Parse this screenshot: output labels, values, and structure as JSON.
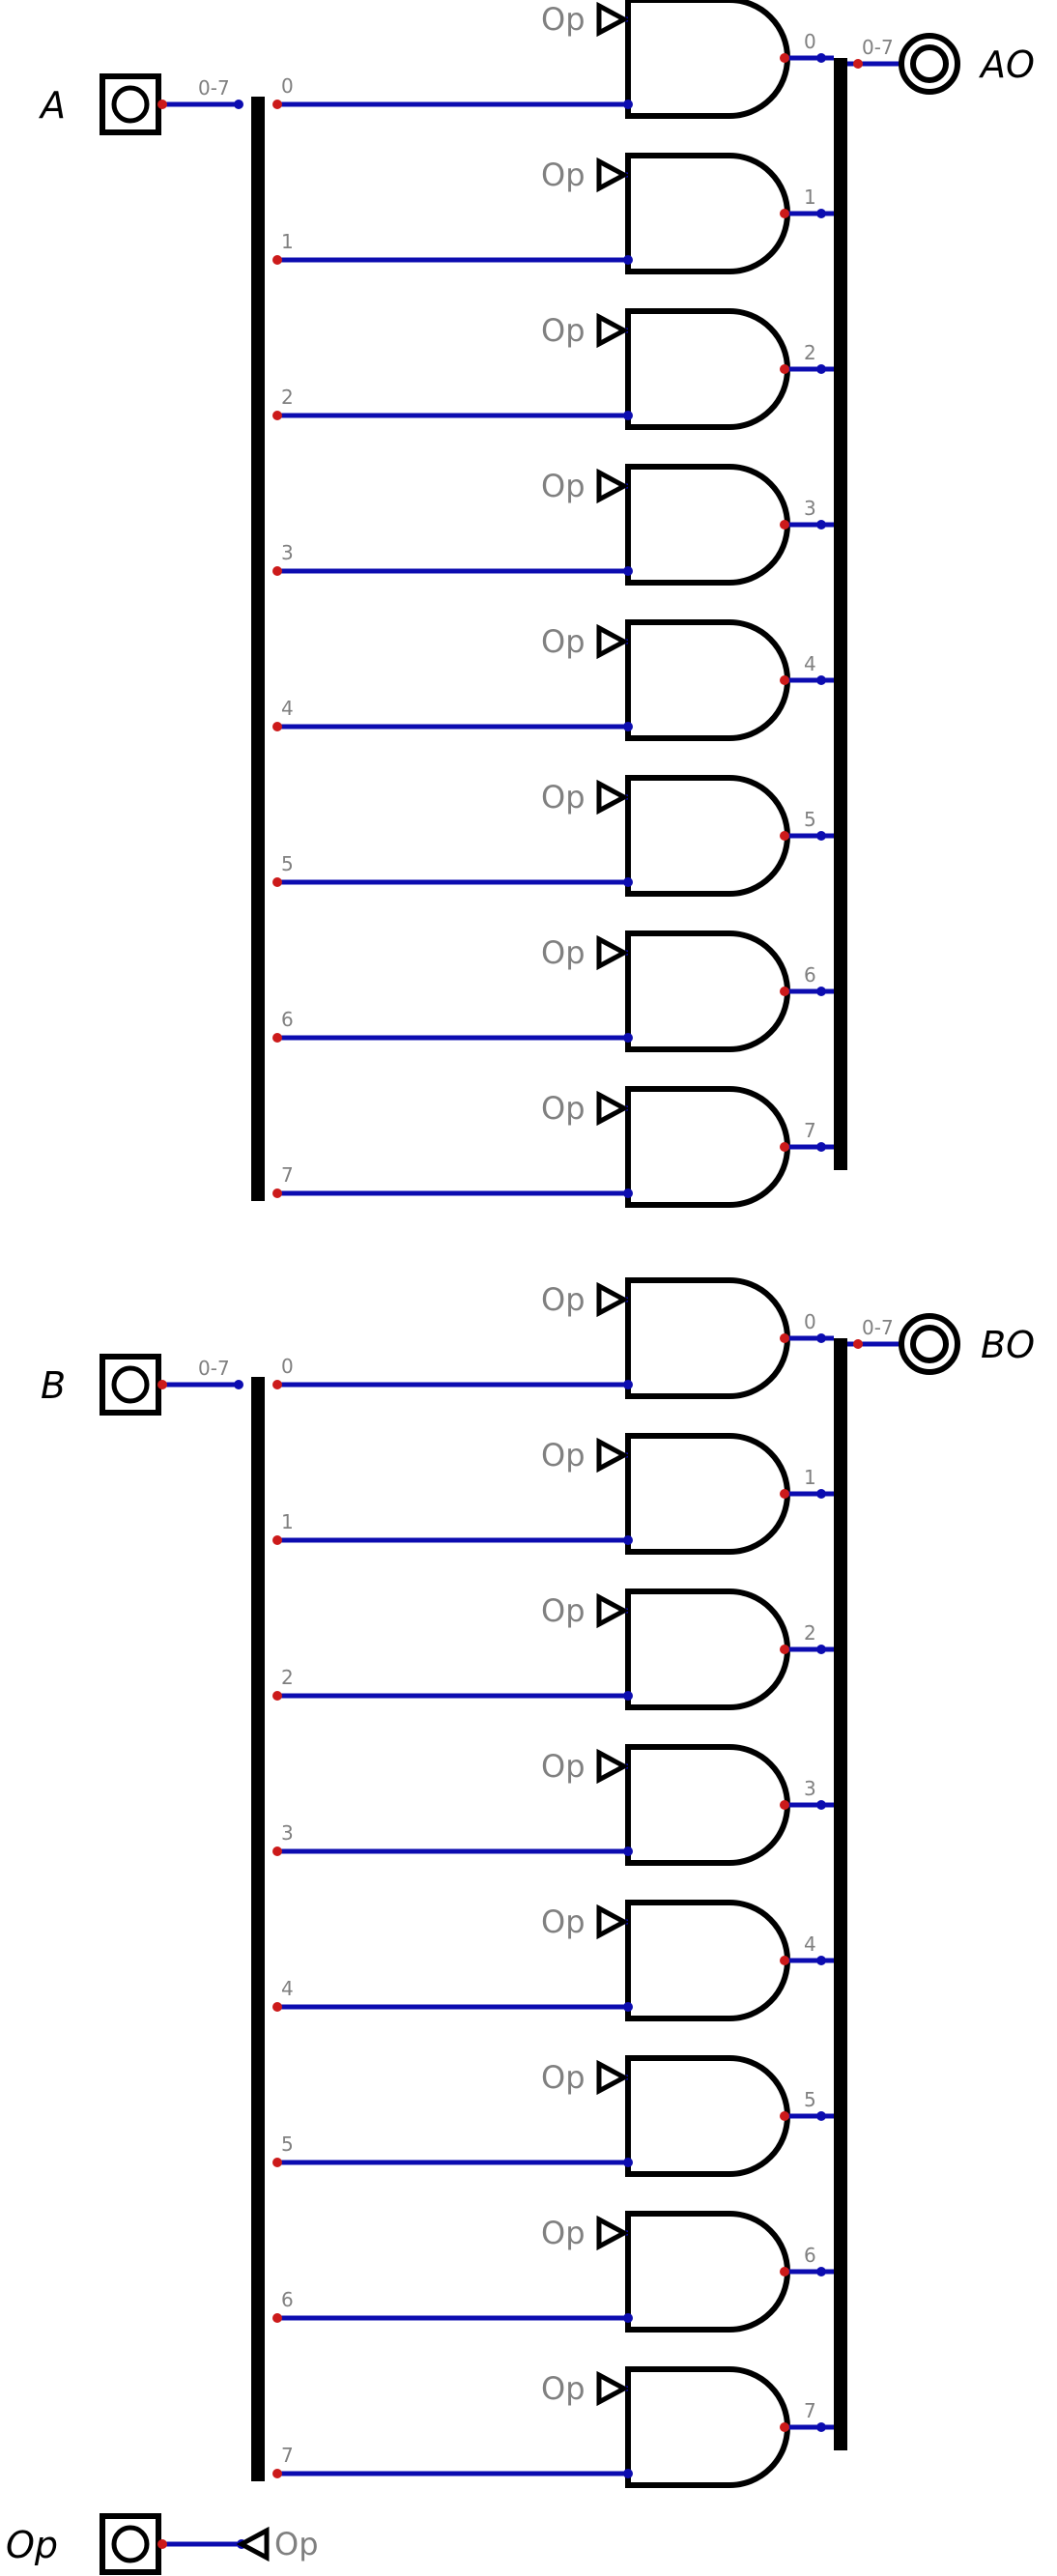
{
  "diagram": {
    "colors": {
      "wire": "#0c0cb0",
      "bus": "#000000",
      "pin_dot": "#cc1a1a",
      "port_dot": "#0c0cb0",
      "gate_stroke": "#000000",
      "label_gray": "#808080"
    },
    "blocks": [
      {
        "input_label": "A",
        "output_label": "AO",
        "in_range": "0-7",
        "out_range": "0-7",
        "bits": [
          "0",
          "1",
          "2",
          "3",
          "4",
          "5",
          "6",
          "7"
        ],
        "out_bits": [
          "0",
          "1",
          "2",
          "3",
          "4",
          "5",
          "6",
          "7"
        ],
        "tunnel": "Op"
      },
      {
        "input_label": "B",
        "output_label": "BO",
        "in_range": "0-7",
        "out_range": "0-7",
        "bits": [
          "0",
          "1",
          "2",
          "3",
          "4",
          "5",
          "6",
          "7"
        ],
        "out_bits": [
          "0",
          "1",
          "2",
          "3",
          "4",
          "5",
          "6",
          "7"
        ],
        "tunnel": "Op"
      }
    ],
    "op_pin": {
      "label": "Op",
      "tunnel": "Op"
    }
  }
}
